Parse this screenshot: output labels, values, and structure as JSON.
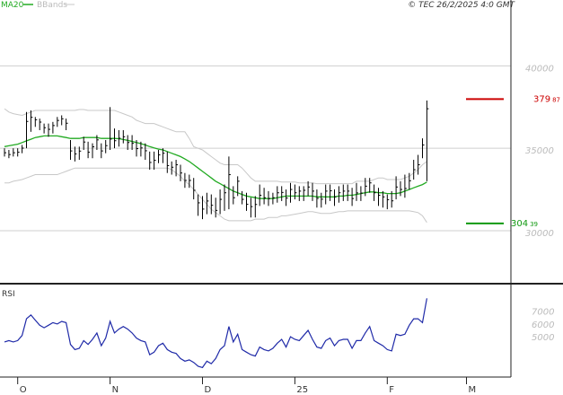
{
  "header": {
    "ma_label": "MA20",
    "bbands_label": "BBands",
    "copyright": "© TEC 26/2/2025 4:0 GMT"
  },
  "colors": {
    "price": "#000000",
    "ma": "#22aa22",
    "bbands": "#c8c8c8",
    "rsi": "#1f2aa8",
    "resistance": "#cc0000",
    "support": "#119911",
    "grid": "#cfcfcf",
    "axis": "#222222"
  },
  "chart_data": [
    {
      "type": "line",
      "panel": "price",
      "ylim": [
        27000,
        44000
      ],
      "yticks": [
        30000,
        35000,
        40000
      ],
      "ytick_labels": [
        "30000",
        "35000",
        "40000"
      ],
      "x_ticks": [
        {
          "bar": 3,
          "label": "O"
        },
        {
          "bar": 24,
          "label": "N"
        },
        {
          "bar": 45,
          "label": "D"
        },
        {
          "bar": 66,
          "label": "25"
        },
        {
          "bar": 87,
          "label": "F"
        },
        {
          "bar": 105,
          "label": "M"
        }
      ],
      "close": [
        34730,
        34620,
        34730,
        34760,
        35010,
        36630,
        36880,
        36730,
        36590,
        36250,
        36150,
        36380,
        36690,
        36790,
        36520,
        34840,
        34660,
        34830,
        35380,
        34760,
        35090,
        35510,
        34840,
        35160,
        35560,
        35460,
        35610,
        35700,
        35350,
        35300,
        34980,
        35020,
        34850,
        34140,
        34270,
        34600,
        34700,
        33950,
        33850,
        34000,
        33500,
        33050,
        33050,
        32450,
        31690,
        31310,
        31800,
        31540,
        31230,
        31900,
        32300,
        33400,
        32000,
        33000,
        31900,
        31600,
        31460,
        31590,
        32150,
        32000,
        31950,
        32000,
        32300,
        32320,
        31980,
        32500,
        32300,
        32400,
        32450,
        32650,
        32400,
        31960,
        31910,
        32400,
        32420,
        32050,
        32300,
        32400,
        32400,
        31950,
        32290,
        32280,
        32700,
        32900,
        32300,
        32150,
        32050,
        31880,
        31810,
        32650,
        32500,
        32560,
        33030,
        33700,
        34000,
        35200,
        37400
      ],
      "high": [
        35000,
        34900,
        35000,
        35000,
        35200,
        37200,
        37300,
        36900,
        36800,
        36500,
        36500,
        36600,
        36900,
        37000,
        36800,
        35500,
        35100,
        35100,
        35700,
        35400,
        35300,
        35800,
        35300,
        35500,
        37500,
        36200,
        36100,
        36100,
        35800,
        35800,
        35500,
        35400,
        35300,
        34800,
        34800,
        34900,
        35000,
        34800,
        34200,
        34300,
        34000,
        33500,
        33400,
        33200,
        32200,
        32100,
        32300,
        32200,
        32000,
        32500,
        32800,
        34500,
        32700,
        33300,
        32400,
        32300,
        32000,
        32100,
        32800,
        32600,
        32400,
        32300,
        32700,
        32700,
        32500,
        32900,
        32800,
        32700,
        32700,
        33000,
        32900,
        32500,
        32300,
        32800,
        32800,
        32500,
        32700,
        32800,
        32800,
        32600,
        32900,
        32700,
        33200,
        33200,
        32800,
        32600,
        32400,
        32200,
        32400,
        33300,
        33000,
        33400,
        33500,
        34300,
        34600,
        35600,
        37900
      ],
      "low": [
        34500,
        34400,
        34500,
        34500,
        34700,
        35000,
        36000,
        36300,
        36100,
        35900,
        35700,
        35900,
        36300,
        36400,
        36100,
        34300,
        34200,
        34300,
        34900,
        34400,
        34400,
        34900,
        34400,
        34700,
        34900,
        35000,
        35100,
        35300,
        34900,
        34900,
        34500,
        34500,
        34300,
        33700,
        33700,
        34100,
        34100,
        33500,
        33400,
        33300,
        33000,
        32600,
        32600,
        31900,
        30900,
        30700,
        31000,
        31000,
        30800,
        31000,
        31200,
        31300,
        31600,
        32100,
        31600,
        31200,
        30800,
        30800,
        31500,
        31600,
        31500,
        31600,
        31700,
        31800,
        31500,
        31700,
        31900,
        31800,
        31800,
        32100,
        31800,
        31400,
        31400,
        31600,
        31800,
        31500,
        31700,
        31800,
        31800,
        31500,
        31800,
        31800,
        32100,
        32300,
        31800,
        31500,
        31400,
        31300,
        31400,
        31900,
        32100,
        32000,
        32500,
        33100,
        33400,
        34400,
        33000
      ],
      "ma20": [
        35100,
        35150,
        35200,
        35250,
        35350,
        35450,
        35550,
        35650,
        35700,
        35750,
        35750,
        35750,
        35750,
        35700,
        35650,
        35600,
        35600,
        35600,
        35650,
        35650,
        35650,
        35650,
        35600,
        35600,
        35600,
        35600,
        35580,
        35530,
        35480,
        35420,
        35350,
        35280,
        35200,
        35100,
        35020,
        34950,
        34900,
        34800,
        34700,
        34600,
        34500,
        34350,
        34200,
        34000,
        33800,
        33600,
        33400,
        33200,
        33000,
        32850,
        32700,
        32550,
        32400,
        32300,
        32200,
        32100,
        32050,
        32000,
        31950,
        31950,
        31950,
        31950,
        32000,
        32050,
        32100,
        32100,
        32100,
        32100,
        32100,
        32100,
        32100,
        32050,
        32050,
        32050,
        32050,
        32050,
        32100,
        32100,
        32150,
        32150,
        32200,
        32250,
        32300,
        32350,
        32350,
        32300,
        32300,
        32250,
        32250,
        32250,
        32300,
        32400,
        32500,
        32600,
        32700,
        32800,
        32950
      ],
      "bb_upper": [
        37400,
        37200,
        37100,
        37050,
        37000,
        37100,
        37200,
        37300,
        37300,
        37300,
        37300,
        37300,
        37300,
        37300,
        37300,
        37300,
        37300,
        37350,
        37350,
        37300,
        37300,
        37300,
        37300,
        37300,
        37300,
        37300,
        37200,
        37100,
        37000,
        36900,
        36700,
        36600,
        36500,
        36500,
        36500,
        36400,
        36300,
        36200,
        36100,
        36000,
        36000,
        36000,
        35600,
        35100,
        35000,
        34900,
        34700,
        34500,
        34300,
        34100,
        34000,
        34000,
        34000,
        34000,
        33800,
        33500,
        33200,
        33000,
        33000,
        33000,
        33000,
        33000,
        33000,
        32950,
        32950,
        32950,
        32950,
        32900,
        32900,
        32900,
        32900,
        32850,
        32850,
        32850,
        32850,
        32850,
        32850,
        32850,
        32850,
        32850,
        33000,
        33000,
        33000,
        33000,
        33100,
        33200,
        33200,
        33100,
        33100,
        33100,
        33100,
        33200,
        33300,
        33500,
        33700,
        34000,
        34200
      ],
      "bb_lower": [
        32900,
        32900,
        33000,
        33050,
        33100,
        33200,
        33300,
        33400,
        33400,
        33400,
        33400,
        33400,
        33400,
        33500,
        33600,
        33700,
        33800,
        33800,
        33800,
        33800,
        33800,
        33800,
        33800,
        33800,
        33800,
        33800,
        33800,
        33800,
        33800,
        33800,
        33800,
        33800,
        33800,
        33800,
        33800,
        33800,
        33800,
        33800,
        33700,
        33500,
        33300,
        33000,
        32800,
        32500,
        32200,
        31900,
        31600,
        31300,
        31100,
        30900,
        30700,
        30600,
        30600,
        30600,
        30600,
        30600,
        30600,
        30700,
        30700,
        30700,
        30800,
        30800,
        30800,
        30900,
        30900,
        30950,
        31000,
        31050,
        31100,
        31150,
        31150,
        31100,
        31050,
        31050,
        31050,
        31100,
        31150,
        31150,
        31200,
        31200,
        31200,
        31200,
        31200,
        31200,
        31200,
        31200,
        31200,
        31200,
        31200,
        31200,
        31200,
        31200,
        31200,
        31150,
        31100,
        30900,
        30500
      ]
    },
    {
      "type": "line",
      "panel": "rsi",
      "label": "RSI",
      "ylim": [
        20,
        90
      ],
      "yticks": [
        50,
        60,
        70
      ],
      "ytick_labels": [
        "5000",
        "6000",
        "7000"
      ],
      "values": [
        46,
        47,
        46,
        47,
        51,
        64,
        67,
        63,
        59,
        57,
        59,
        61,
        60,
        62,
        61,
        44,
        40,
        41,
        47,
        44,
        48,
        53,
        43,
        49,
        62,
        53,
        56,
        58,
        56,
        53,
        49,
        47,
        46,
        36,
        38,
        43,
        45,
        40,
        38,
        37,
        33,
        31,
        32,
        30,
        27,
        26,
        31,
        29,
        33,
        40,
        43,
        58,
        46,
        52,
        40,
        38,
        36,
        35,
        42,
        40,
        39,
        41,
        45,
        48,
        42,
        50,
        48,
        47,
        51,
        55,
        48,
        42,
        41,
        47,
        49,
        43,
        47,
        48,
        48,
        41,
        47,
        47,
        53,
        58,
        47,
        45,
        43,
        40,
        39,
        52,
        51,
        52,
        59,
        64,
        64,
        61,
        80
      ]
    }
  ],
  "levels": {
    "resistance": {
      "value": 37987,
      "int": "379",
      "dec": "87"
    },
    "support": {
      "value": 30439,
      "int": "304",
      "dec": "39"
    }
  }
}
